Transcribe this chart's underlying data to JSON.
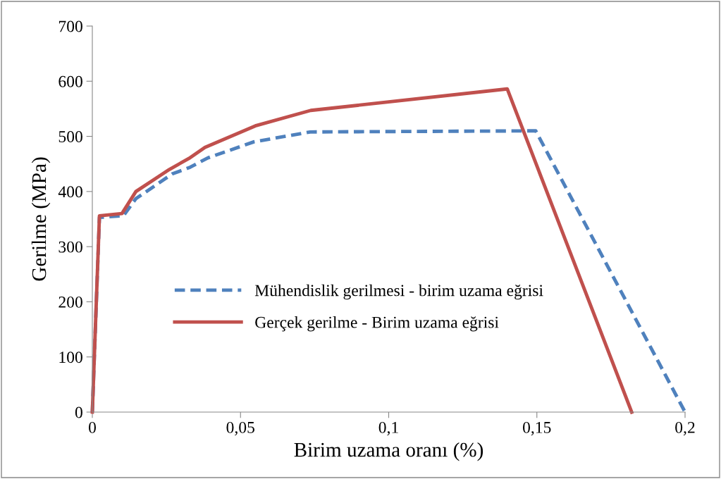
{
  "chart_data": {
    "type": "line",
    "xlabel": "Birim uzama oranı (%)",
    "ylabel": "Gerilme (MPa)",
    "xlim": [
      0,
      0.2
    ],
    "xticks": [
      {
        "value": 0,
        "label": "0"
      },
      {
        "value": 0.05,
        "label": "0,05"
      },
      {
        "value": 0.1,
        "label": "0,1"
      },
      {
        "value": 0.15,
        "label": "0,15"
      },
      {
        "value": 0.2,
        "label": "0,2"
      }
    ],
    "ylim": [
      0,
      700
    ],
    "yticks": [
      0,
      100,
      200,
      300,
      400,
      500,
      600,
      700
    ],
    "grid": false,
    "legend": "center",
    "marker": "none",
    "series": [
      {
        "name": "Mühendislik gerilmesi - birim uzama eğrisi",
        "color": "#4f81bd",
        "line_style": "dashed",
        "x": [
          0,
          0.0024,
          0.0105,
          0.0147,
          0.027,
          0.033,
          0.039,
          0.0545,
          0.0735,
          0.1496,
          0.2
        ],
        "values": [
          0,
          353,
          356,
          387,
          432,
          444,
          461,
          490,
          508,
          510,
          0
        ]
      },
      {
        "name": "Gerçek gerilme - Birim uzama eğrisi",
        "color": "#c0504d",
        "line_style": "solid",
        "x": [
          0,
          0.0024,
          0.01,
          0.0147,
          0.026,
          0.0326,
          0.038,
          0.055,
          0.0737,
          0.14,
          0.182
        ],
        "values": [
          0,
          356,
          360,
          400,
          440,
          460,
          480,
          519,
          547,
          586,
          0
        ]
      }
    ]
  }
}
